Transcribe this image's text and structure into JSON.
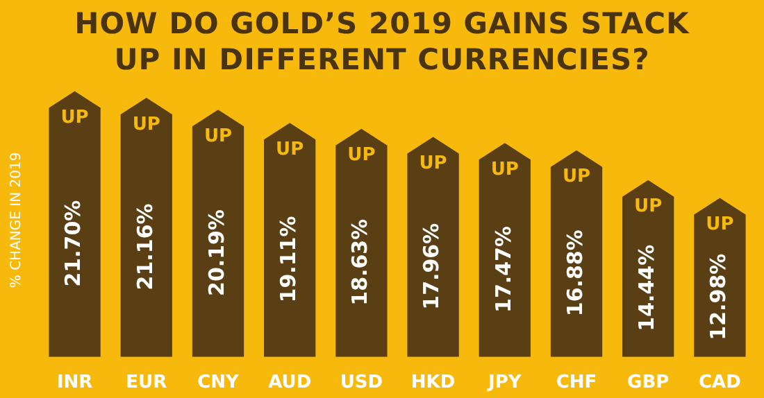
{
  "chart_data": {
    "type": "bar",
    "title": "HOW DO GOLD’S 2019 GAINS STACK UP IN DIFFERENT CURRENCIES?",
    "ylabel": "% CHANGE IN 2019",
    "categories": [
      "INR",
      "EUR",
      "CNY",
      "AUD",
      "USD",
      "HKD",
      "JPY",
      "CHF",
      "GBP",
      "CAD"
    ],
    "values": [
      21.7,
      21.16,
      20.19,
      19.11,
      18.63,
      17.96,
      17.47,
      16.88,
      14.44,
      12.98
    ],
    "color": "#5b3f14",
    "value_labels": [
      "21.70%",
      "21.16%",
      "20.19%",
      "19.11%",
      "18.63%",
      "17.96%",
      "17.47%",
      "16.88%",
      "14.44%",
      "12.98%"
    ],
    "annotations": [
      {
        "text": "UP",
        "x": "INR",
        "y": 21.7
      },
      {
        "text": "UP",
        "x": "EUR",
        "y": 21.16
      },
      {
        "text": "UP",
        "x": "CNY",
        "y": 20.19
      },
      {
        "text": "UP",
        "x": "AUD",
        "y": 19.11
      },
      {
        "text": "UP",
        "x": "USD",
        "y": 18.63
      },
      {
        "text": "UP",
        "x": "HKD",
        "y": 17.96
      },
      {
        "text": "UP",
        "x": "JPY",
        "y": 17.47
      },
      {
        "text": "UP",
        "x": "CHF",
        "y": 16.88
      },
      {
        "text": "UP",
        "x": "GBP",
        "y": 14.44
      },
      {
        "text": "UP",
        "x": "CAD",
        "y": 12.98
      }
    ],
    "legend": false,
    "grid": false
  }
}
